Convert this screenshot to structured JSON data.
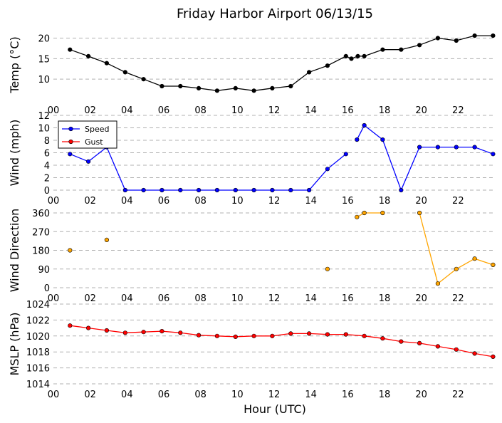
{
  "chart_data": {
    "title": "Friday Harbor Airport 06/13/15",
    "xlabel": "Hour (UTC)",
    "x_ticks": [
      "00",
      "02",
      "04",
      "06",
      "08",
      "10",
      "12",
      "14",
      "16",
      "18",
      "20",
      "22"
    ],
    "xlim": [
      0,
      24
    ],
    "panels": [
      {
        "type": "line",
        "ylabel": "Temp ($^\\circ$C)",
        "ylabel_display": "Temp (°C)",
        "ylim": [
          5,
          22
        ],
        "yticks": [
          10,
          15,
          20
        ],
        "grid": "horizontal dashed",
        "series": [
          {
            "name": "",
            "color": "#000000",
            "x": [
              0.9,
              1.9,
              2.9,
              3.9,
              4.9,
              5.9,
              6.9,
              7.9,
              8.9,
              9.9,
              10.9,
              11.9,
              12.9,
              13.9,
              14.9,
              15.9,
              16.2,
              16.55,
              16.9,
              17.9,
              18.9,
              19.9,
              20.9,
              21.9,
              22.9,
              23.9
            ],
            "y": [
              17.2,
              15.6,
              13.9,
              11.7,
              10.0,
              8.3,
              8.3,
              7.8,
              7.2,
              7.8,
              7.2,
              7.8,
              8.3,
              11.7,
              13.3,
              15.6,
              15.0,
              15.6,
              15.6,
              17.2,
              17.2,
              18.3,
              20.0,
              19.4,
              20.6,
              20.6
            ]
          }
        ]
      },
      {
        "type": "line",
        "ylabel": "Wind (mph)",
        "ylim": [
          0,
          12
        ],
        "yticks": [
          0,
          2,
          4,
          6,
          8,
          10,
          12
        ],
        "grid": "horizontal dashed",
        "legend": "upper-left",
        "series": [
          {
            "name": "Speed",
            "color": "#0000ff",
            "segments": [
              {
                "x": [
                  0.9,
                  1.9,
                  2.9,
                  3.9,
                  4.9,
                  5.9,
                  6.9,
                  7.9,
                  8.9,
                  9.9,
                  10.9,
                  11.9,
                  12.9,
                  13.9,
                  14.9,
                  15.9
                ],
                "y": [
                  5.8,
                  4.6,
                  6.9,
                  0,
                  0,
                  0,
                  0,
                  0,
                  0,
                  0,
                  0,
                  0,
                  0,
                  0,
                  3.4,
                  5.8
                ]
              },
              {
                "x": [
                  16.5,
                  16.9,
                  17.9,
                  18.9,
                  19.9,
                  20.9,
                  21.9,
                  22.9,
                  23.9
                ],
                "y": [
                  8.1,
                  10.4,
                  8.1,
                  0,
                  6.9,
                  6.9,
                  6.9,
                  6.9,
                  5.8
                ]
              }
            ]
          },
          {
            "name": "Gust",
            "color": "#ff0000",
            "segments": []
          }
        ]
      },
      {
        "type": "scatter-line",
        "ylabel": "Wind Direction",
        "ylim": [
          0,
          360
        ],
        "yticks": [
          0,
          90,
          180,
          270,
          360
        ],
        "grid": "horizontal dashed",
        "series": [
          {
            "name": "",
            "color": "#ffa500",
            "segments": [
              {
                "x": [
                  0.9
                ],
                "y": [
                  180
                ]
              },
              {
                "x": [
                  2.9
                ],
                "y": [
                  230
                ]
              },
              {
                "x": [
                  14.9
                ],
                "y": [
                  90
                ]
              },
              {
                "x": [
                  16.5,
                  16.9,
                  17.9
                ],
                "y": [
                  340,
                  360,
                  360
                ]
              },
              {
                "x": [
                  19.9,
                  20.9,
                  21.9,
                  22.9,
                  23.9
                ],
                "y": [
                  360,
                  20,
                  90,
                  140,
                  110
                ]
              }
            ]
          }
        ]
      },
      {
        "type": "line",
        "ylabel": "MSLP (hPa)",
        "ylim": [
          1014,
          1024
        ],
        "yticks": [
          1014,
          1016,
          1018,
          1020,
          1022,
          1024
        ],
        "grid": "horizontal dashed",
        "series": [
          {
            "name": "",
            "color": "#ff0000",
            "x": [
              0.9,
              1.9,
              2.9,
              3.9,
              4.9,
              5.9,
              6.9,
              7.9,
              8.9,
              9.9,
              10.9,
              11.9,
              12.9,
              13.9,
              14.9,
              15.9,
              16.9,
              17.9,
              18.9,
              19.9,
              20.9,
              21.9,
              22.9,
              23.9
            ],
            "y": [
              1021.3,
              1021.0,
              1020.7,
              1020.4,
              1020.5,
              1020.6,
              1020.4,
              1020.1,
              1020.0,
              1019.9,
              1020.0,
              1020.0,
              1020.3,
              1020.3,
              1020.2,
              1020.2,
              1020.0,
              1019.7,
              1019.3,
              1019.1,
              1018.7,
              1018.3,
              1017.8,
              1017.4
            ]
          }
        ]
      }
    ]
  }
}
